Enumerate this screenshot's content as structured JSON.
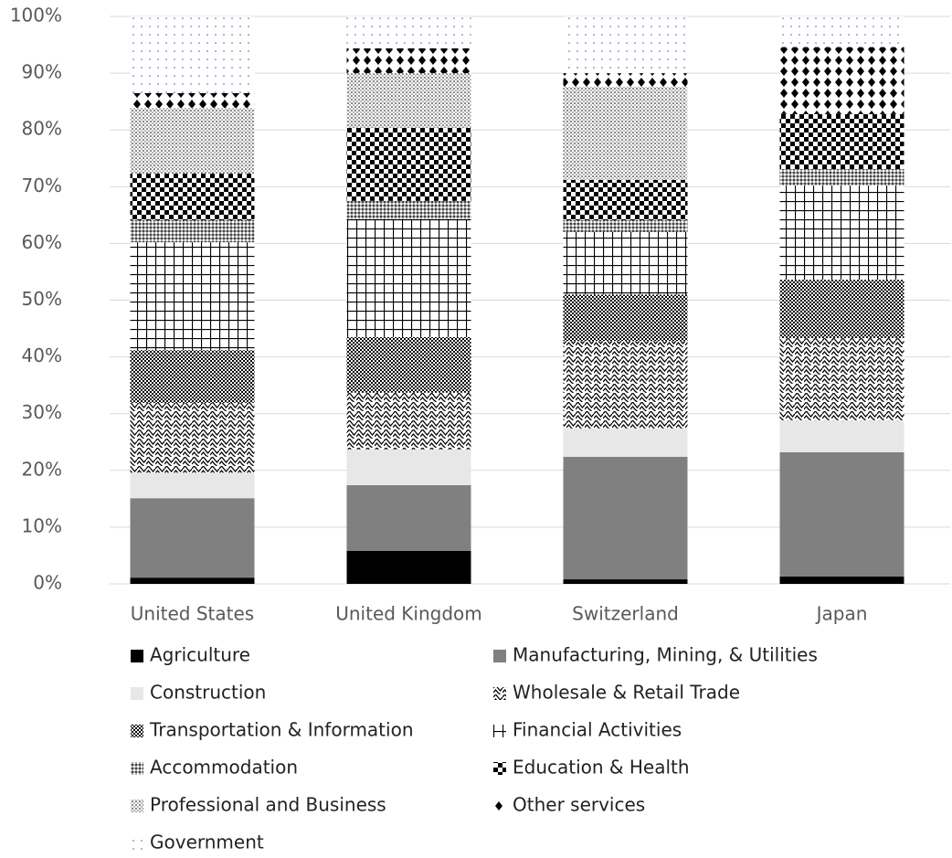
{
  "chart_data": {
    "type": "stacked_bar",
    "categories": [
      "United States",
      "United Kingdom",
      "Switzerland",
      "Japan"
    ],
    "series": [
      {
        "name": "Agriculture",
        "color": "#000000",
        "values": [
          1.1,
          5.8,
          0.8,
          1.3
        ]
      },
      {
        "name": "Manufacturing, Mining, & Utilities",
        "color": "#808080",
        "values": [
          14.0,
          11.6,
          21.6,
          21.9
        ]
      },
      {
        "name": "Construction",
        "color": "#e7e7e7",
        "values": [
          4.5,
          6.3,
          5.0,
          5.6
        ]
      },
      {
        "name": "Wholesale & Retail Trade",
        "color": "#000000",
        "values": [
          12.3,
          10.0,
          15.4,
          14.5
        ]
      },
      {
        "name": "Transportation & Information",
        "color": "#000000",
        "values": [
          9.3,
          9.8,
          8.2,
          10.3
        ]
      },
      {
        "name": "Financial Activities",
        "color": "#000000",
        "values": [
          19.0,
          20.8,
          11.0,
          16.6
        ]
      },
      {
        "name": "Accommodation",
        "color": "#000000",
        "values": [
          3.9,
          3.2,
          2.1,
          2.9
        ]
      },
      {
        "name": "Education & Health",
        "color": "#000000",
        "values": [
          8.2,
          12.9,
          7.1,
          9.7
        ]
      },
      {
        "name": "Professional and Business",
        "color": "#000000",
        "values": [
          11.6,
          9.6,
          16.4,
          0
        ]
      },
      {
        "name": "Other services",
        "color": "#000000",
        "values": [
          2.6,
          4.4,
          2.4,
          11.8
        ]
      },
      {
        "name": "Government",
        "color": "#4a63a8",
        "values": [
          13.5,
          5.6,
          10.0,
          5.4
        ]
      }
    ],
    "ylim": [
      0,
      100
    ],
    "yticks": [
      {
        "value": 0,
        "label": "0%"
      },
      {
        "value": 10,
        "label": "10%"
      },
      {
        "value": 20,
        "label": "20%"
      },
      {
        "value": 30,
        "label": "30%"
      },
      {
        "value": 40,
        "label": "40%"
      },
      {
        "value": 50,
        "label": "50%"
      },
      {
        "value": 60,
        "label": "60%"
      },
      {
        "value": 70,
        "label": "70%"
      },
      {
        "value": 80,
        "label": "80%"
      },
      {
        "value": 90,
        "label": "90%"
      },
      {
        "value": 100,
        "label": "100%"
      }
    ],
    "grid": true
  }
}
